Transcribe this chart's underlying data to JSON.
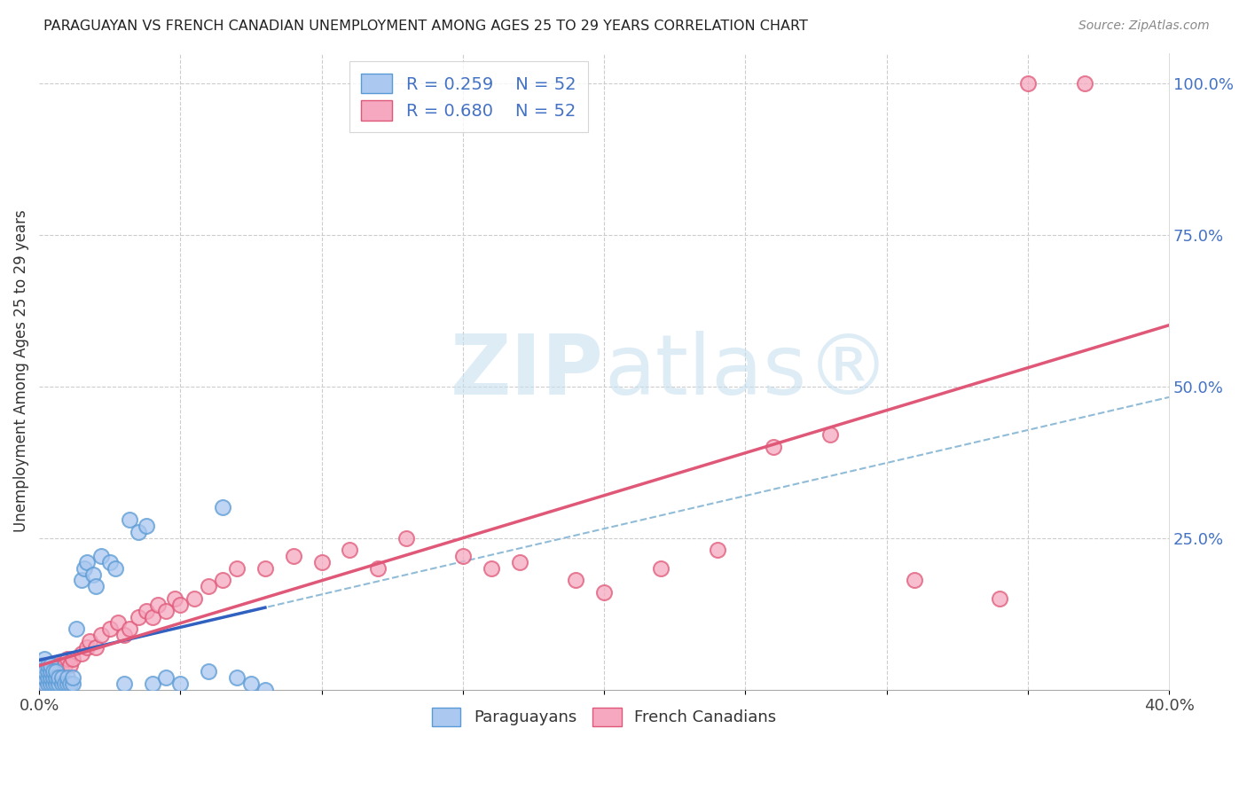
{
  "title": "PARAGUAYAN VS FRENCH CANADIAN UNEMPLOYMENT AMONG AGES 25 TO 29 YEARS CORRELATION CHART",
  "source": "Source: ZipAtlas.com",
  "ylabel": "Unemployment Among Ages 25 to 29 years",
  "xlim": [
    0.0,
    0.4
  ],
  "ylim": [
    0.0,
    1.05
  ],
  "xtick_positions": [
    0.0,
    0.05,
    0.1,
    0.15,
    0.2,
    0.25,
    0.3,
    0.35,
    0.4
  ],
  "xticklabels": [
    "0.0%",
    "",
    "",
    "",
    "",
    "",
    "",
    "",
    "40.0%"
  ],
  "ytick_positions": [
    0.25,
    0.5,
    0.75,
    1.0
  ],
  "yticklabels_right": [
    "25.0%",
    "50.0%",
    "75.0%",
    "100.0%"
  ],
  "par_color_face": "#aac8f0",
  "par_color_edge": "#5b9bd5",
  "fc_color_face": "#f5a8c0",
  "fc_color_edge": "#e05878",
  "trend_par_color": "#3060c0",
  "trend_fc_color": "#e05878",
  "trend_dashed_color": "#90bcd8",
  "legend_text_color": "#4472c4",
  "watermark_color": "#c8e0f0",
  "par_x": [
    0.001,
    0.001,
    0.001,
    0.002,
    0.002,
    0.002,
    0.002,
    0.003,
    0.003,
    0.003,
    0.003,
    0.004,
    0.004,
    0.004,
    0.004,
    0.005,
    0.005,
    0.005,
    0.006,
    0.006,
    0.006,
    0.007,
    0.007,
    0.008,
    0.008,
    0.009,
    0.01,
    0.01,
    0.011,
    0.012,
    0.012,
    0.013,
    0.015,
    0.016,
    0.017,
    0.019,
    0.02,
    0.022,
    0.025,
    0.027,
    0.03,
    0.032,
    0.035,
    0.038,
    0.04,
    0.045,
    0.05,
    0.06,
    0.065,
    0.07,
    0.075,
    0.08
  ],
  "par_y": [
    0.02,
    0.03,
    0.04,
    0.01,
    0.02,
    0.03,
    0.05,
    0.01,
    0.02,
    0.03,
    0.04,
    0.01,
    0.02,
    0.03,
    0.04,
    0.01,
    0.02,
    0.03,
    0.01,
    0.02,
    0.03,
    0.01,
    0.02,
    0.01,
    0.02,
    0.01,
    0.01,
    0.02,
    0.01,
    0.01,
    0.02,
    0.1,
    0.18,
    0.2,
    0.21,
    0.19,
    0.17,
    0.22,
    0.21,
    0.2,
    0.01,
    0.28,
    0.26,
    0.27,
    0.01,
    0.02,
    0.01,
    0.03,
    0.3,
    0.02,
    0.01,
    0.0
  ],
  "fc_x": [
    0.001,
    0.002,
    0.003,
    0.004,
    0.005,
    0.005,
    0.006,
    0.007,
    0.008,
    0.009,
    0.01,
    0.011,
    0.012,
    0.015,
    0.017,
    0.018,
    0.02,
    0.022,
    0.025,
    0.028,
    0.03,
    0.032,
    0.035,
    0.038,
    0.04,
    0.042,
    0.045,
    0.048,
    0.05,
    0.055,
    0.06,
    0.065,
    0.07,
    0.08,
    0.09,
    0.1,
    0.11,
    0.12,
    0.13,
    0.15,
    0.16,
    0.17,
    0.19,
    0.2,
    0.22,
    0.24,
    0.26,
    0.28,
    0.31,
    0.34,
    0.35,
    0.37
  ],
  "fc_y": [
    0.01,
    0.02,
    0.02,
    0.03,
    0.01,
    0.03,
    0.02,
    0.04,
    0.03,
    0.04,
    0.05,
    0.04,
    0.05,
    0.06,
    0.07,
    0.08,
    0.07,
    0.09,
    0.1,
    0.11,
    0.09,
    0.1,
    0.12,
    0.13,
    0.12,
    0.14,
    0.13,
    0.15,
    0.14,
    0.15,
    0.17,
    0.18,
    0.2,
    0.2,
    0.22,
    0.21,
    0.23,
    0.2,
    0.25,
    0.22,
    0.2,
    0.21,
    0.18,
    0.16,
    0.2,
    0.23,
    0.4,
    0.42,
    0.18,
    0.15,
    1.0,
    1.0
  ]
}
